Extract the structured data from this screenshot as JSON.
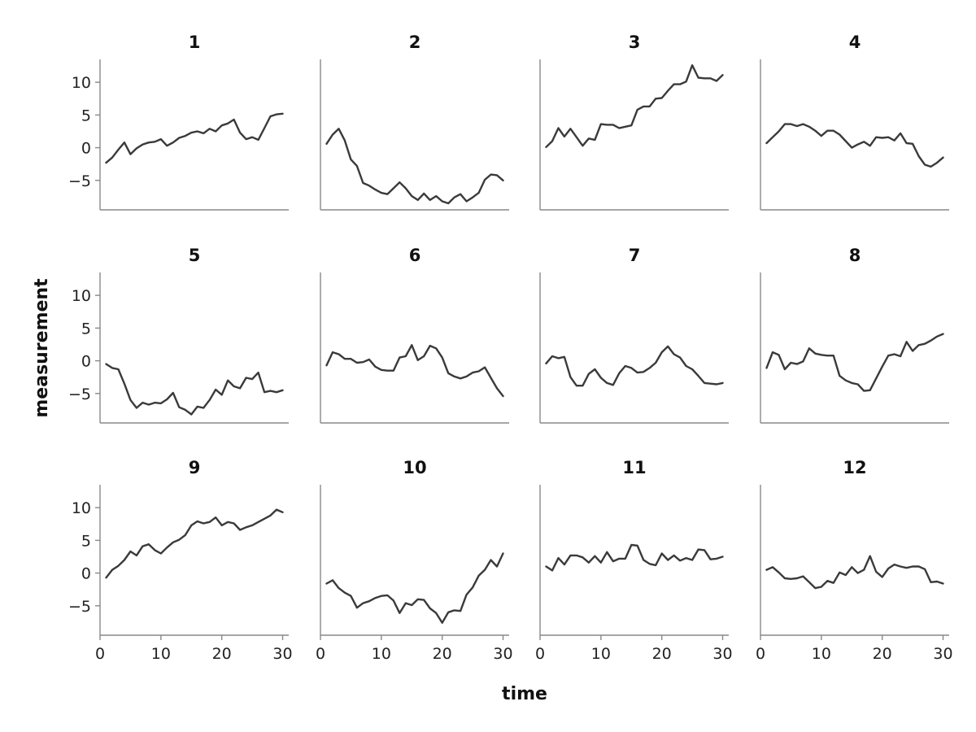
{
  "chart_data": {
    "type": "line",
    "layout": "facet-grid",
    "xlabel": "time",
    "ylabel": "measurement",
    "xlim": [
      0,
      31
    ],
    "ylim": [
      -9.5,
      13.5
    ],
    "xticks": [
      0,
      10,
      20,
      30
    ],
    "yticks": [
      -5,
      0,
      5,
      10
    ],
    "grid": false,
    "line_color": "#3a3a3a",
    "x": [
      1,
      2,
      3,
      4,
      5,
      6,
      7,
      8,
      9,
      10,
      11,
      12,
      13,
      14,
      15,
      16,
      17,
      18,
      19,
      20,
      21,
      22,
      23,
      24,
      25,
      26,
      27,
      28,
      29,
      30
    ],
    "series": [
      {
        "name": "1",
        "values": [
          -2.3,
          -1.5,
          -0.3,
          0.8,
          -1.0,
          -0.1,
          0.5,
          0.8,
          0.9,
          1.3,
          0.3,
          0.8,
          1.5,
          1.8,
          2.3,
          2.5,
          2.2,
          2.9,
          2.5,
          3.4,
          3.7,
          4.3,
          2.3,
          1.3,
          1.6,
          1.2,
          3.0,
          4.8,
          5.1,
          5.2
        ]
      },
      {
        "name": "2",
        "values": [
          0.6,
          2.0,
          2.9,
          1.1,
          -1.8,
          -2.8,
          -5.4,
          -5.8,
          -6.4,
          -6.9,
          -7.1,
          -6.2,
          -5.3,
          -6.2,
          -7.4,
          -8.0,
          -7.0,
          -8.0,
          -7.4,
          -8.2,
          -8.5,
          -7.6,
          -7.1,
          -8.2,
          -7.6,
          -6.9,
          -4.9,
          -4.1,
          -4.2,
          -5.0
        ]
      },
      {
        "name": "3",
        "values": [
          0.1,
          1.0,
          3.0,
          1.7,
          2.9,
          1.6,
          0.3,
          1.4,
          1.2,
          3.6,
          3.5,
          3.5,
          3.0,
          3.2,
          3.4,
          5.8,
          6.3,
          6.3,
          7.5,
          7.6,
          8.7,
          9.7,
          9.7,
          10.1,
          12.6,
          10.7,
          10.6,
          10.6,
          10.2,
          11.1
        ]
      },
      {
        "name": "4",
        "values": [
          0.7,
          1.6,
          2.5,
          3.6,
          3.6,
          3.3,
          3.6,
          3.2,
          2.6,
          1.8,
          2.6,
          2.6,
          2.0,
          1.0,
          0.0,
          0.5,
          0.9,
          0.3,
          1.6,
          1.5,
          1.6,
          1.1,
          2.2,
          0.7,
          0.6,
          -1.3,
          -2.6,
          -2.9,
          -2.3,
          -1.5
        ]
      },
      {
        "name": "5",
        "values": [
          -0.5,
          -1.1,
          -1.3,
          -3.5,
          -6.0,
          -7.2,
          -6.4,
          -6.7,
          -6.4,
          -6.5,
          -5.9,
          -4.9,
          -7.1,
          -7.5,
          -8.2,
          -7.0,
          -7.2,
          -6.0,
          -4.4,
          -5.2,
          -3.0,
          -3.9,
          -4.2,
          -2.6,
          -2.8,
          -1.8,
          -4.8,
          -4.6,
          -4.8,
          -4.5
        ]
      },
      {
        "name": "6",
        "values": [
          -0.7,
          1.3,
          1.0,
          0.3,
          0.3,
          -0.3,
          -0.2,
          0.2,
          -0.9,
          -1.4,
          -1.5,
          -1.5,
          0.5,
          0.7,
          2.4,
          0.1,
          0.7,
          2.3,
          1.9,
          0.5,
          -1.9,
          -2.4,
          -2.7,
          -2.4,
          -1.8,
          -1.6,
          -1.0,
          -2.6,
          -4.2,
          -5.4
        ]
      },
      {
        "name": "7",
        "values": [
          -0.4,
          0.7,
          0.4,
          0.6,
          -2.5,
          -3.8,
          -3.8,
          -2.0,
          -1.3,
          -2.6,
          -3.4,
          -3.7,
          -1.9,
          -0.8,
          -1.1,
          -1.8,
          -1.7,
          -1.1,
          -0.3,
          1.3,
          2.2,
          1.0,
          0.5,
          -0.8,
          -1.3,
          -2.3,
          -3.4,
          -3.5,
          -3.6,
          -3.4
        ]
      },
      {
        "name": "8",
        "values": [
          -1.1,
          1.3,
          0.9,
          -1.3,
          -0.3,
          -0.5,
          -0.1,
          1.9,
          1.1,
          0.9,
          0.8,
          0.8,
          -2.3,
          -3.0,
          -3.4,
          -3.6,
          -4.6,
          -4.5,
          -2.7,
          -0.9,
          0.8,
          1.0,
          0.7,
          2.9,
          1.5,
          2.4,
          2.6,
          3.1,
          3.7,
          4.1
        ]
      },
      {
        "name": "9",
        "values": [
          -0.7,
          0.5,
          1.1,
          2.0,
          3.3,
          2.7,
          4.1,
          4.4,
          3.5,
          3.0,
          3.9,
          4.7,
          5.1,
          5.8,
          7.3,
          7.9,
          7.6,
          7.8,
          8.5,
          7.3,
          7.8,
          7.6,
          6.6,
          7.0,
          7.3,
          7.8,
          8.3,
          8.8,
          9.7,
          9.3
        ]
      },
      {
        "name": "10",
        "values": [
          -1.6,
          -1.1,
          -2.3,
          -3.0,
          -3.5,
          -5.3,
          -4.6,
          -4.3,
          -3.8,
          -3.5,
          -3.4,
          -4.2,
          -6.1,
          -4.6,
          -4.9,
          -4.0,
          -4.1,
          -5.4,
          -6.1,
          -7.6,
          -6.0,
          -5.7,
          -5.8,
          -3.3,
          -2.2,
          -0.4,
          0.5,
          2.0,
          1.0,
          3.0
        ]
      },
      {
        "name": "11",
        "values": [
          1.0,
          0.4,
          2.3,
          1.3,
          2.7,
          2.7,
          2.4,
          1.6,
          2.6,
          1.6,
          3.2,
          1.8,
          2.2,
          2.2,
          4.3,
          4.2,
          2.0,
          1.4,
          1.2,
          3.0,
          2.0,
          2.7,
          1.9,
          2.3,
          2.0,
          3.6,
          3.5,
          2.1,
          2.2,
          2.5
        ]
      },
      {
        "name": "12",
        "values": [
          0.5,
          0.9,
          0.1,
          -0.8,
          -0.9,
          -0.8,
          -0.5,
          -1.4,
          -2.3,
          -2.1,
          -1.2,
          -1.5,
          0.1,
          -0.3,
          0.9,
          0.0,
          0.5,
          2.6,
          0.2,
          -0.6,
          0.7,
          1.3,
          1.0,
          0.8,
          1.0,
          1.0,
          0.6,
          -1.4,
          -1.3,
          -1.6
        ]
      }
    ]
  }
}
